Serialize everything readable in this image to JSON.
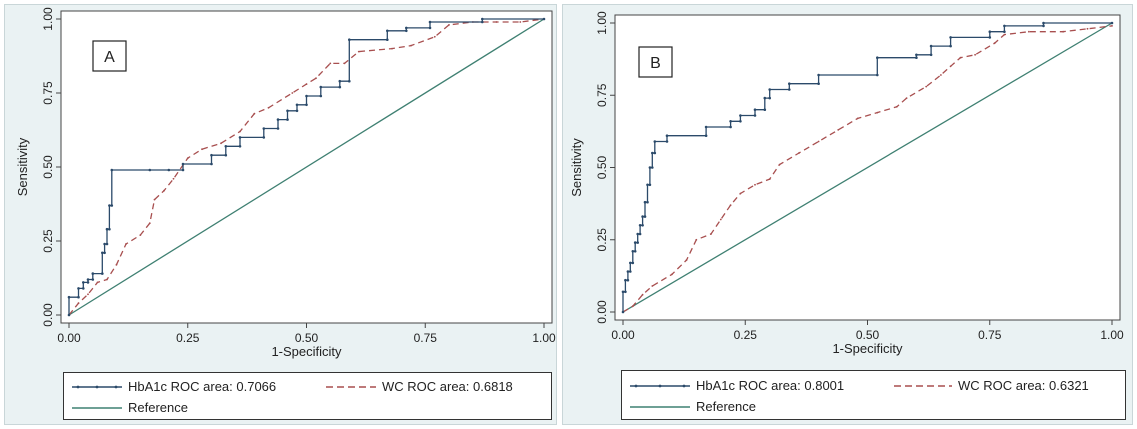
{
  "colors": {
    "hba1c": "#2b4a6a",
    "wc": "#a84f4f",
    "reference": "#3f8072",
    "panel_bg": "#eaf2f3",
    "plot_bg": "#ffffff"
  },
  "chart_data": [
    {
      "type": "line",
      "panel_label": "A",
      "xlabel": "1-Specificity",
      "ylabel": "Sensitivity",
      "xlim": [
        0,
        1
      ],
      "ylim": [
        0,
        1
      ],
      "x_ticks": [
        "0.00",
        "0.25",
        "0.50",
        "0.75",
        "1.00"
      ],
      "y_ticks": [
        "0.00",
        "0.25",
        "0.50",
        "0.75",
        "1.00"
      ],
      "grid": false,
      "legend_position": "bottom",
      "series": [
        {
          "name": "HbA1c ROC area: 0.7066",
          "style": "solid-with-markers",
          "points": [
            [
              0,
              0
            ],
            [
              0,
              0.06
            ],
            [
              0.02,
              0.06
            ],
            [
              0.02,
              0.09
            ],
            [
              0.03,
              0.09
            ],
            [
              0.03,
              0.11
            ],
            [
              0.04,
              0.11
            ],
            [
              0.04,
              0.12
            ],
            [
              0.05,
              0.12
            ],
            [
              0.05,
              0.14
            ],
            [
              0.07,
              0.14
            ],
            [
              0.07,
              0.21
            ],
            [
              0.075,
              0.21
            ],
            [
              0.075,
              0.24
            ],
            [
              0.08,
              0.24
            ],
            [
              0.08,
              0.29
            ],
            [
              0.085,
              0.29
            ],
            [
              0.085,
              0.37
            ],
            [
              0.09,
              0.37
            ],
            [
              0.09,
              0.49
            ],
            [
              0.17,
              0.49
            ],
            [
              0.21,
              0.49
            ],
            [
              0.24,
              0.49
            ],
            [
              0.24,
              0.51
            ],
            [
              0.3,
              0.51
            ],
            [
              0.3,
              0.54
            ],
            [
              0.33,
              0.54
            ],
            [
              0.33,
              0.57
            ],
            [
              0.36,
              0.57
            ],
            [
              0.36,
              0.6
            ],
            [
              0.41,
              0.6
            ],
            [
              0.41,
              0.63
            ],
            [
              0.44,
              0.63
            ],
            [
              0.44,
              0.66
            ],
            [
              0.46,
              0.66
            ],
            [
              0.46,
              0.69
            ],
            [
              0.48,
              0.69
            ],
            [
              0.48,
              0.71
            ],
            [
              0.5,
              0.71
            ],
            [
              0.5,
              0.74
            ],
            [
              0.53,
              0.74
            ],
            [
              0.53,
              0.77
            ],
            [
              0.57,
              0.77
            ],
            [
              0.57,
              0.79
            ],
            [
              0.59,
              0.79
            ],
            [
              0.59,
              0.93
            ],
            [
              0.67,
              0.93
            ],
            [
              0.67,
              0.96
            ],
            [
              0.71,
              0.96
            ],
            [
              0.71,
              0.97
            ],
            [
              0.76,
              0.97
            ],
            [
              0.76,
              0.99
            ],
            [
              0.87,
              0.99
            ],
            [
              0.87,
              1.0
            ],
            [
              1.0,
              1.0
            ]
          ]
        },
        {
          "name": "WC ROC area: 0.6818",
          "style": "dashed",
          "points": [
            [
              0,
              0
            ],
            [
              0.02,
              0.04
            ],
            [
              0.04,
              0.07
            ],
            [
              0.06,
              0.11
            ],
            [
              0.08,
              0.12
            ],
            [
              0.1,
              0.17
            ],
            [
              0.12,
              0.24
            ],
            [
              0.15,
              0.27
            ],
            [
              0.17,
              0.31
            ],
            [
              0.18,
              0.39
            ],
            [
              0.2,
              0.42
            ],
            [
              0.22,
              0.46
            ],
            [
              0.25,
              0.53
            ],
            [
              0.28,
              0.56
            ],
            [
              0.32,
              0.58
            ],
            [
              0.36,
              0.62
            ],
            [
              0.39,
              0.68
            ],
            [
              0.42,
              0.7
            ],
            [
              0.47,
              0.75
            ],
            [
              0.5,
              0.78
            ],
            [
              0.52,
              0.8
            ],
            [
              0.55,
              0.85
            ],
            [
              0.58,
              0.85
            ],
            [
              0.61,
              0.89
            ],
            [
              0.68,
              0.9
            ],
            [
              0.72,
              0.91
            ],
            [
              0.77,
              0.94
            ],
            [
              0.8,
              0.98
            ],
            [
              0.85,
              0.99
            ],
            [
              0.9,
              0.99
            ],
            [
              0.95,
              0.99
            ],
            [
              1.0,
              1.0
            ]
          ]
        },
        {
          "name": "Reference",
          "style": "solid",
          "points": [
            [
              0,
              0
            ],
            [
              1,
              1
            ]
          ]
        }
      ]
    },
    {
      "type": "line",
      "panel_label": "B",
      "xlabel": "1-Specificity",
      "ylabel": "Sensitivity",
      "xlim": [
        0,
        1
      ],
      "ylim": [
        0,
        1
      ],
      "x_ticks": [
        "0.00",
        "0.25",
        "0.50",
        "0.75",
        "1.00"
      ],
      "y_ticks": [
        "0.00",
        "0.25",
        "0.50",
        "0.75",
        "1.00"
      ],
      "grid": false,
      "legend_position": "bottom",
      "series": [
        {
          "name": "HbA1c ROC area: 0.8001",
          "style": "solid-with-markers",
          "points": [
            [
              0,
              0
            ],
            [
              0,
              0.07
            ],
            [
              0.005,
              0.07
            ],
            [
              0.005,
              0.11
            ],
            [
              0.01,
              0.11
            ],
            [
              0.01,
              0.14
            ],
            [
              0.015,
              0.14
            ],
            [
              0.015,
              0.17
            ],
            [
              0.02,
              0.17
            ],
            [
              0.02,
              0.21
            ],
            [
              0.025,
              0.21
            ],
            [
              0.025,
              0.24
            ],
            [
              0.03,
              0.24
            ],
            [
              0.03,
              0.27
            ],
            [
              0.035,
              0.27
            ],
            [
              0.035,
              0.3
            ],
            [
              0.04,
              0.3
            ],
            [
              0.04,
              0.33
            ],
            [
              0.045,
              0.33
            ],
            [
              0.045,
              0.38
            ],
            [
              0.05,
              0.38
            ],
            [
              0.05,
              0.44
            ],
            [
              0.055,
              0.44
            ],
            [
              0.055,
              0.5
            ],
            [
              0.06,
              0.5
            ],
            [
              0.06,
              0.55
            ],
            [
              0.065,
              0.55
            ],
            [
              0.065,
              0.59
            ],
            [
              0.09,
              0.59
            ],
            [
              0.09,
              0.61
            ],
            [
              0.17,
              0.61
            ],
            [
              0.17,
              0.64
            ],
            [
              0.22,
              0.64
            ],
            [
              0.22,
              0.66
            ],
            [
              0.24,
              0.66
            ],
            [
              0.24,
              0.68
            ],
            [
              0.27,
              0.68
            ],
            [
              0.27,
              0.7
            ],
            [
              0.29,
              0.7
            ],
            [
              0.29,
              0.74
            ],
            [
              0.3,
              0.74
            ],
            [
              0.3,
              0.77
            ],
            [
              0.34,
              0.77
            ],
            [
              0.34,
              0.79
            ],
            [
              0.4,
              0.79
            ],
            [
              0.4,
              0.82
            ],
            [
              0.52,
              0.82
            ],
            [
              0.52,
              0.88
            ],
            [
              0.6,
              0.88
            ],
            [
              0.6,
              0.89
            ],
            [
              0.63,
              0.89
            ],
            [
              0.63,
              0.92
            ],
            [
              0.67,
              0.92
            ],
            [
              0.67,
              0.95
            ],
            [
              0.75,
              0.95
            ],
            [
              0.75,
              0.97
            ],
            [
              0.78,
              0.97
            ],
            [
              0.78,
              0.99
            ],
            [
              0.86,
              0.99
            ],
            [
              0.86,
              1.0
            ],
            [
              1.0,
              1.0
            ]
          ]
        },
        {
          "name": "WC ROC area: 0.6321",
          "style": "dashed",
          "points": [
            [
              0,
              0
            ],
            [
              0.02,
              0.02
            ],
            [
              0.04,
              0.06
            ],
            [
              0.06,
              0.09
            ],
            [
              0.1,
              0.13
            ],
            [
              0.13,
              0.18
            ],
            [
              0.15,
              0.25
            ],
            [
              0.18,
              0.27
            ],
            [
              0.2,
              0.32
            ],
            [
              0.22,
              0.37
            ],
            [
              0.24,
              0.41
            ],
            [
              0.27,
              0.44
            ],
            [
              0.3,
              0.46
            ],
            [
              0.32,
              0.51
            ],
            [
              0.36,
              0.55
            ],
            [
              0.4,
              0.59
            ],
            [
              0.44,
              0.63
            ],
            [
              0.48,
              0.67
            ],
            [
              0.52,
              0.69
            ],
            [
              0.56,
              0.71
            ],
            [
              0.58,
              0.74
            ],
            [
              0.62,
              0.78
            ],
            [
              0.65,
              0.82
            ],
            [
              0.67,
              0.85
            ],
            [
              0.69,
              0.88
            ],
            [
              0.72,
              0.89
            ],
            [
              0.76,
              0.93
            ],
            [
              0.78,
              0.96
            ],
            [
              0.83,
              0.97
            ],
            [
              0.9,
              0.97
            ],
            [
              0.95,
              0.98
            ],
            [
              1.0,
              0.99
            ]
          ]
        },
        {
          "name": "Reference",
          "style": "solid",
          "points": [
            [
              0,
              0
            ],
            [
              1,
              1
            ]
          ]
        }
      ]
    }
  ]
}
